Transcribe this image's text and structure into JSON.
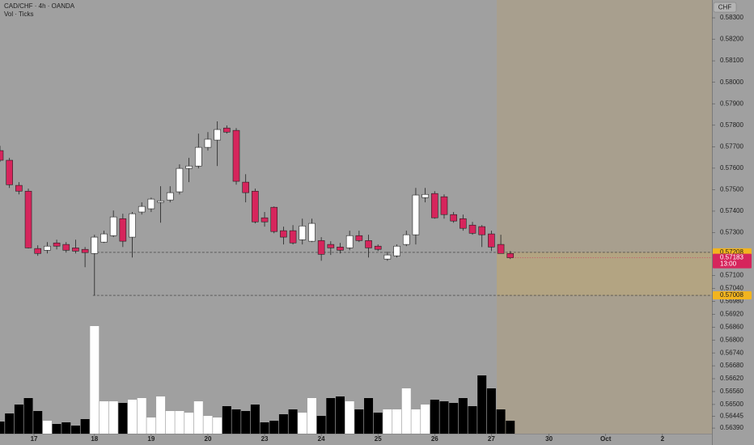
{
  "chart_data": {
    "type": "candlestick",
    "title": "CAD/CHF · 4h · OANDA",
    "subtitle": "Vol · Ticks",
    "currency": "CHF",
    "up_color": "#ffffff",
    "down_color": "#d6255c",
    "volume_up_color": "#ffffff",
    "volume_down_color": "#000000",
    "ylim": [
      0.56364,
      0.58383
    ],
    "xlim": [
      0,
      75.34
    ],
    "yticks": [
      {
        "value": 0.583,
        "label": "0.58300"
      },
      {
        "value": 0.582,
        "label": "0.58200"
      },
      {
        "value": 0.581,
        "label": "0.58100"
      },
      {
        "value": 0.58,
        "label": "0.58000"
      },
      {
        "value": 0.579,
        "label": "0.57900"
      },
      {
        "value": 0.578,
        "label": "0.57800"
      },
      {
        "value": 0.577,
        "label": "0.57700"
      },
      {
        "value": 0.576,
        "label": "0.57600"
      },
      {
        "value": 0.575,
        "label": "0.57500"
      },
      {
        "value": 0.574,
        "label": "0.57400"
      },
      {
        "value": 0.573,
        "label": "0.57300"
      },
      {
        "value": 0.571,
        "label": "0.57100"
      },
      {
        "value": 0.5704,
        "label": "0.57040"
      },
      {
        "value": 0.5698,
        "label": "0.56980"
      },
      {
        "value": 0.5692,
        "label": "0.56920"
      },
      {
        "value": 0.5686,
        "label": "0.56860"
      },
      {
        "value": 0.568,
        "label": "0.56800"
      },
      {
        "value": 0.5674,
        "label": "0.56740"
      },
      {
        "value": 0.5668,
        "label": "0.56680"
      },
      {
        "value": 0.5662,
        "label": "0.56620"
      },
      {
        "value": 0.5656,
        "label": "0.56560"
      },
      {
        "value": 0.565,
        "label": "0.56500"
      },
      {
        "value": 0.56445,
        "label": "0.56445"
      },
      {
        "value": 0.5639,
        "label": "0.56390"
      }
    ],
    "xticks": [
      {
        "value": 3.6,
        "label": "17"
      },
      {
        "value": 10.0,
        "label": "18"
      },
      {
        "value": 16.0,
        "label": "19"
      },
      {
        "value": 22.0,
        "label": "20"
      },
      {
        "value": 28.0,
        "label": "23"
      },
      {
        "value": 34.0,
        "label": "24"
      },
      {
        "value": 40.0,
        "label": "25"
      },
      {
        "value": 46.0,
        "label": "26"
      },
      {
        "value": 52.0,
        "label": "27"
      },
      {
        "value": 58.1,
        "label": "30"
      },
      {
        "value": 64.1,
        "label": "Oct"
      },
      {
        "value": 70.1,
        "label": "2"
      }
    ],
    "levels": [
      {
        "value": 0.57208,
        "label": "0.57208"
      },
      {
        "value": 0.57008,
        "label": "0.57008"
      }
    ],
    "last_price": {
      "value": 0.57183,
      "label": "0.57183",
      "countdown": "13:00"
    },
    "open": [
      0.57682,
      0.57637,
      0.5752,
      0.57493,
      0.57226,
      0.57218,
      0.57252,
      0.57245,
      0.57229,
      0.57222,
      0.57203,
      0.57256,
      0.57286,
      0.57365,
      0.57279,
      0.57396,
      0.57411,
      0.57441,
      0.57452,
      0.5749,
      0.57599,
      0.5761,
      0.57697,
      0.57731,
      0.57787,
      0.57776,
      0.57535,
      0.57493,
      0.57369,
      0.57418,
      0.57309,
      0.57309,
      0.57267,
      0.5726,
      0.57263,
      0.57245,
      0.57233,
      0.57229,
      0.57286,
      0.57263,
      0.57237,
      0.57177,
      0.57192,
      0.57245,
      0.5729,
      0.57463,
      0.57482,
      0.57467,
      0.57384,
      0.57365,
      0.57335,
      0.57328,
      0.57294,
      0.57245,
      0.57203
    ],
    "high": [
      0.57704,
      0.57648,
      0.57535,
      0.57505,
      0.57241,
      0.57256,
      0.57267,
      0.57256,
      0.57267,
      0.57233,
      0.5729,
      0.57309,
      0.57403,
      0.57388,
      0.57396,
      0.57441,
      0.57463,
      0.57516,
      0.57516,
      0.57618,
      0.57648,
      0.57761,
      0.57768,
      0.57818,
      0.57799,
      0.57787,
      0.57572,
      0.57505,
      0.57396,
      0.57422,
      0.57328,
      0.57335,
      0.57365,
      0.57365,
      0.57279,
      0.5726,
      0.57252,
      0.57309,
      0.57309,
      0.5729,
      0.57245,
      0.57211,
      0.57245,
      0.57309,
      0.57508,
      0.57508,
      0.57493,
      0.57478,
      0.57396,
      0.57384,
      0.5735,
      0.57335,
      0.57309,
      0.5729,
      0.57214
    ],
    "low": [
      0.57629,
      0.57508,
      0.57478,
      0.57226,
      0.57192,
      0.57203,
      0.57222,
      0.57207,
      0.57203,
      0.57139,
      0.57008,
      0.57252,
      0.57279,
      0.57233,
      0.57184,
      0.57384,
      0.57396,
      0.57346,
      0.57441,
      0.57478,
      0.57535,
      0.57599,
      0.57682,
      0.5761,
      0.57761,
      0.57523,
      0.57441,
      0.57343,
      0.57328,
      0.57297,
      0.57245,
      0.57245,
      0.57245,
      0.57256,
      0.57169,
      0.57196,
      0.57203,
      0.57218,
      0.57256,
      0.57184,
      0.57214,
      0.57169,
      0.57184,
      0.57237,
      0.57245,
      0.57441,
      0.57365,
      0.57365,
      0.57346,
      0.57309,
      0.5729,
      0.57233,
      0.57214,
      0.57203,
      0.57177
    ],
    "close": [
      0.57637,
      0.57523,
      0.57493,
      0.57229,
      0.57203,
      0.57237,
      0.57237,
      0.57218,
      0.57214,
      0.57207,
      0.57279,
      0.57294,
      0.57373,
      0.5726,
      0.57388,
      0.57422,
      0.57456,
      0.57448,
      0.57486,
      0.57599,
      0.5761,
      0.57697,
      0.57735,
      0.5778,
      0.57768,
      0.57539,
      0.57486,
      0.5735,
      0.5735,
      0.57305,
      0.57279,
      0.57252,
      0.57331,
      0.57343,
      0.57199,
      0.57229,
      0.57218,
      0.57286,
      0.57263,
      0.57229,
      0.57222,
      0.57196,
      0.57237,
      0.5729,
      0.57475,
      0.57478,
      0.57369,
      0.57384,
      0.57354,
      0.5732,
      0.57297,
      0.5729,
      0.57233,
      0.57203,
      0.57183
    ],
    "volume": [
      15,
      25,
      36,
      44,
      28,
      16,
      12,
      14,
      10,
      18,
      133,
      40,
      40,
      38,
      42,
      44,
      20,
      46,
      28,
      28,
      26,
      40,
      22,
      20,
      34,
      30,
      28,
      36,
      14,
      16,
      24,
      30,
      26,
      44,
      22,
      44,
      46,
      40,
      30,
      44,
      26,
      30,
      30,
      56,
      30,
      36,
      42,
      40,
      38,
      44,
      34,
      72,
      56,
      30,
      16
    ]
  }
}
